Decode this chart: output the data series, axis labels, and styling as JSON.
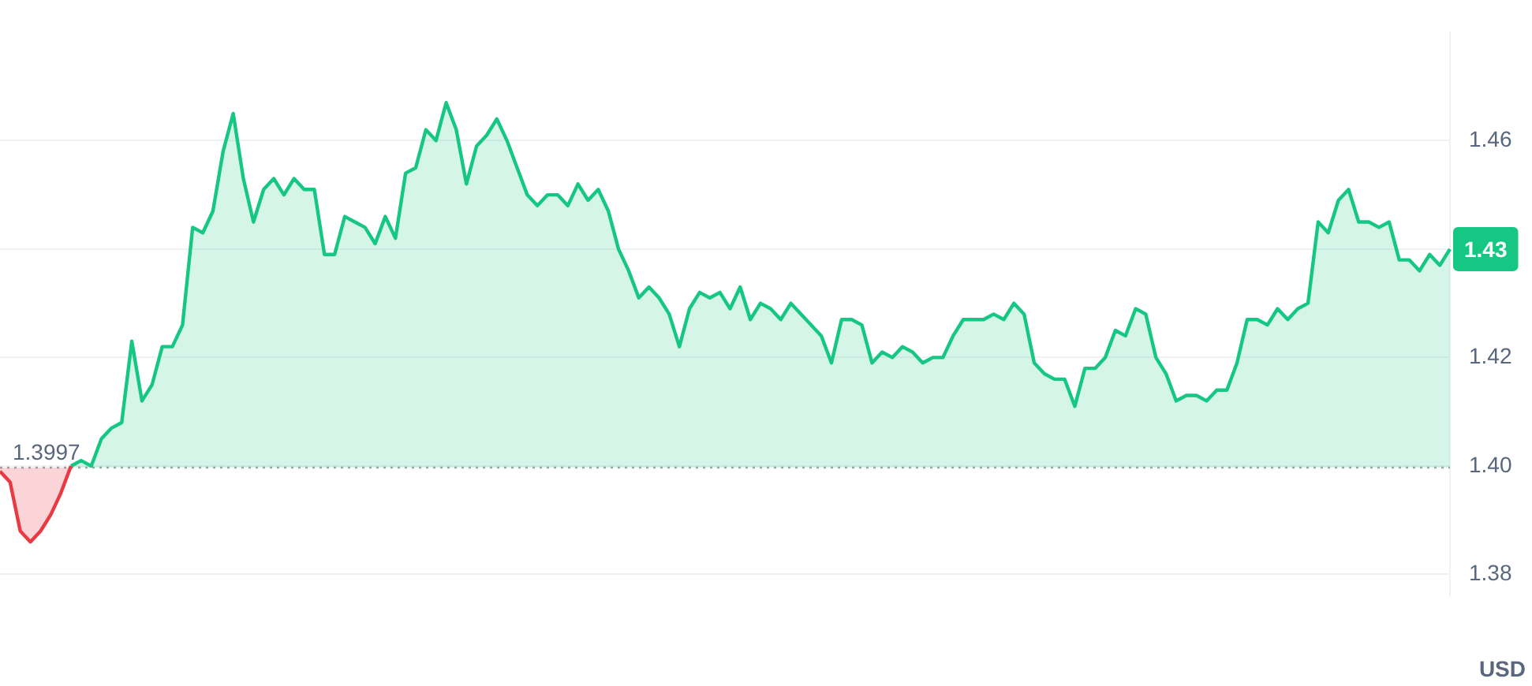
{
  "chart_data": {
    "type": "area",
    "ylabel": "USD",
    "categories": [
      null,
      null,
      null,
      null,
      null,
      null,
      null,
      null,
      null,
      null,
      null,
      null,
      null,
      null,
      null,
      null,
      null,
      null,
      null,
      null,
      null,
      null,
      null,
      null,
      null,
      null,
      null,
      null,
      null,
      null,
      null,
      null,
      null,
      null,
      null,
      null,
      null,
      null,
      null,
      null,
      null,
      null,
      null,
      null,
      null,
      null,
      null,
      null,
      null,
      null,
      null,
      null,
      null,
      null,
      null,
      null,
      null,
      null,
      null,
      null,
      null,
      null,
      null,
      null,
      null,
      null,
      null,
      null,
      null,
      null,
      null,
      null,
      null,
      null,
      null,
      null,
      null,
      null,
      null,
      null,
      null,
      null,
      null,
      null,
      null,
      null,
      null,
      null,
      null,
      null,
      null,
      null,
      null,
      null,
      null,
      null,
      null,
      null,
      null,
      null,
      null,
      null,
      null,
      null,
      null,
      null,
      null,
      null,
      null,
      null,
      null,
      null,
      null,
      null,
      null,
      null,
      null,
      null,
      null,
      null,
      null,
      null,
      null,
      null,
      null,
      null,
      null,
      null,
      null,
      null,
      null,
      null,
      null,
      null,
      null,
      null,
      null,
      null,
      null,
      null,
      null,
      null,
      null,
      null
    ],
    "series": [
      {
        "color": "#ea3943",
        "values": [
          1.399,
          1.397,
          1.388,
          1.386,
          1.388,
          1.391,
          1.395,
          1.4,
          null,
          null,
          null,
          null,
          null,
          null,
          null,
          null,
          null,
          null,
          null,
          null,
          null,
          null,
          null,
          null,
          null,
          null,
          null,
          null,
          null,
          null,
          null,
          null,
          null,
          null,
          null,
          null,
          null,
          null,
          null,
          null,
          null,
          null,
          null,
          null,
          null,
          null,
          null,
          null,
          null,
          null,
          null,
          null,
          null,
          null,
          null,
          null,
          null,
          null,
          null,
          null,
          null,
          null,
          null,
          null,
          null,
          null,
          null,
          null,
          null,
          null,
          null,
          null,
          null,
          null,
          null,
          null,
          null,
          null,
          null,
          null,
          null,
          null,
          null,
          null,
          null,
          null,
          null,
          null,
          null,
          null,
          null,
          null,
          null,
          null,
          null,
          null,
          null,
          null,
          null,
          null,
          null,
          null,
          null,
          null,
          null,
          null,
          null,
          null,
          null,
          null,
          null,
          null,
          null,
          null,
          null,
          null,
          null,
          null,
          null,
          null,
          null,
          null,
          null,
          null,
          null,
          null,
          null,
          null,
          null,
          null,
          null,
          null,
          null,
          null,
          null,
          null,
          null,
          null,
          null,
          null,
          null,
          null,
          null,
          null
        ]
      },
      {
        "color": "#16c784",
        "values": [
          null,
          null,
          null,
          null,
          null,
          null,
          null,
          1.4,
          1.401,
          1.4,
          1.405,
          1.407,
          1.408,
          1.423,
          1.412,
          1.415,
          1.422,
          1.422,
          1.426,
          1.444,
          1.443,
          1.447,
          1.458,
          1.465,
          1.453,
          1.445,
          1.451,
          1.453,
          1.45,
          1.453,
          1.451,
          1.451,
          1.439,
          1.439,
          1.446,
          1.445,
          1.444,
          1.441,
          1.446,
          1.442,
          1.454,
          1.455,
          1.462,
          1.46,
          1.467,
          1.462,
          1.452,
          1.459,
          1.461,
          1.464,
          1.46,
          1.455,
          1.45,
          1.448,
          1.45,
          1.45,
          1.448,
          1.452,
          1.449,
          1.451,
          1.447,
          1.44,
          1.436,
          1.431,
          1.433,
          1.431,
          1.428,
          1.422,
          1.429,
          1.432,
          1.431,
          1.432,
          1.429,
          1.433,
          1.427,
          1.43,
          1.429,
          1.427,
          1.43,
          1.428,
          1.426,
          1.424,
          1.419,
          1.427,
          1.427,
          1.426,
          1.419,
          1.421,
          1.42,
          1.422,
          1.421,
          1.419,
          1.42,
          1.42,
          1.424,
          1.427,
          1.427,
          1.427,
          1.428,
          1.427,
          1.43,
          1.428,
          1.419,
          1.417,
          1.416,
          1.416,
          1.411,
          1.418,
          1.418,
          1.42,
          1.425,
          1.424,
          1.429,
          1.428,
          1.42,
          1.417,
          1.412,
          1.413,
          1.413,
          1.412,
          1.414,
          1.414,
          1.419,
          1.427,
          1.427,
          1.426,
          1.429,
          1.427,
          1.429,
          1.43,
          1.445,
          1.443,
          1.449,
          1.451,
          1.445,
          1.445,
          1.444,
          1.445,
          1.438,
          1.438,
          1.436,
          1.439,
          1.437,
          1.44
        ]
      }
    ],
    "ylim": [
      1.376,
      1.48
    ],
    "yticks": [
      {
        "value": 1.38,
        "label": "1.38"
      },
      {
        "value": 1.4,
        "label": "1.40"
      },
      {
        "value": 1.42,
        "label": "1.42"
      },
      {
        "value": 1.44,
        "label": null
      },
      {
        "value": 1.46,
        "label": "1.46"
      }
    ],
    "grid": "y",
    "tick_labels": "y",
    "legend": false,
    "ref_lines": [
      {
        "axis": "y",
        "value": 1.3997,
        "label": "1.3997",
        "line_style": "dotted",
        "color": "#a0a4ab"
      }
    ],
    "annotations": [
      "1.43"
    ]
  }
}
